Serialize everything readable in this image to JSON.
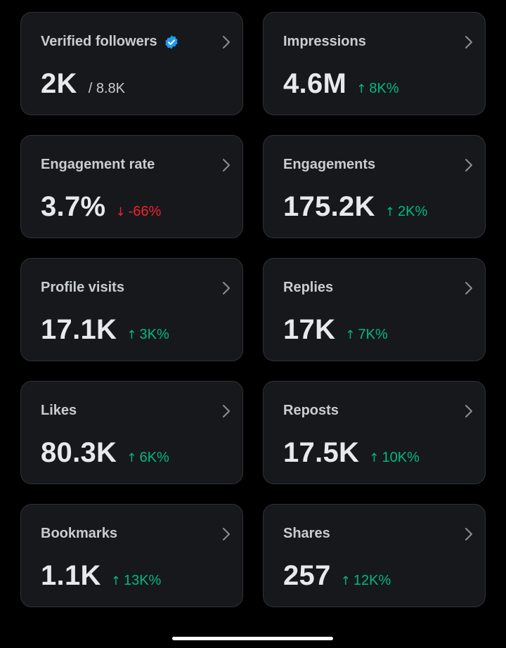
{
  "colors": {
    "background": "#000000",
    "card_background": "#16181c",
    "card_border": "#2f3336",
    "positive": "#00ba7c",
    "negative": "#f4212e",
    "verified_badge": "#1d9bf0"
  },
  "cards": [
    {
      "title": "Verified followers",
      "value": "2K",
      "total": "/ 8.8K",
      "icon": "verified-badge-icon"
    },
    {
      "title": "Impressions",
      "value": "4.6M",
      "change": "8K%",
      "direction": "up"
    },
    {
      "title": "Engagement rate",
      "value": "3.7%",
      "change": "-66%",
      "direction": "down"
    },
    {
      "title": "Engagements",
      "value": "175.2K",
      "change": "2K%",
      "direction": "up"
    },
    {
      "title": "Profile visits",
      "value": "17.1K",
      "change": "3K%",
      "direction": "up"
    },
    {
      "title": "Replies",
      "value": "17K",
      "change": "7K%",
      "direction": "up"
    },
    {
      "title": "Likes",
      "value": "80.3K",
      "change": "6K%",
      "direction": "up"
    },
    {
      "title": "Reposts",
      "value": "17.5K",
      "change": "10K%",
      "direction": "up"
    },
    {
      "title": "Bookmarks",
      "value": "1.1K",
      "change": "13K%",
      "direction": "up"
    },
    {
      "title": "Shares",
      "value": "257",
      "change": "12K%",
      "direction": "up"
    }
  ]
}
